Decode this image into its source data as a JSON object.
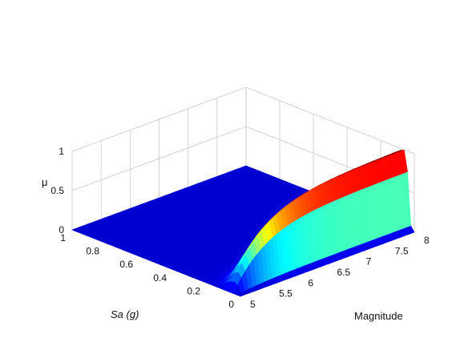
{
  "chart_data": {
    "type": "surface3d",
    "title": "",
    "xlabel": "Sa (g)",
    "ylabel": "Magnitude",
    "zlabel": "μ",
    "xlim": [
      0,
      1
    ],
    "ylim": [
      5,
      8
    ],
    "zlim": [
      0,
      1
    ],
    "x_ticks": [
      "0",
      "0.2",
      "0.4",
      "0.6",
      "0.8",
      "1"
    ],
    "y_ticks": [
      "5",
      "5.5",
      "6",
      "6.5",
      "7",
      "7.5",
      "8"
    ],
    "z_ticks": [
      "0",
      "0.5",
      "1"
    ],
    "grid": true,
    "colormap": "jet",
    "surface_note": "μ is ~0 at Magnitude 5, rises with Magnitude to a peak of 1 near Magnitude 8 and Sa ≈ 0.05 g, and decays as Sa increases",
    "samples": [
      {
        "magnitude": 5.0,
        "sa": 0.05,
        "mu": 0.0
      },
      {
        "magnitude": 5.5,
        "sa": 0.05,
        "mu": 0.55
      },
      {
        "magnitude": 6.0,
        "sa": 0.05,
        "mu": 0.82
      },
      {
        "magnitude": 7.0,
        "sa": 0.05,
        "mu": 0.96
      },
      {
        "magnitude": 8.0,
        "sa": 0.05,
        "mu": 1.0
      },
      {
        "magnitude": 8.0,
        "sa": 0.4,
        "mu": 0.35
      },
      {
        "magnitude": 8.0,
        "sa": 1.0,
        "mu": 0.0
      }
    ],
    "colors": {
      "surface_low": "#2b46d4",
      "surface_high": "#8b0000",
      "grid": "#c8c8c8",
      "axes": "#444444"
    }
  }
}
